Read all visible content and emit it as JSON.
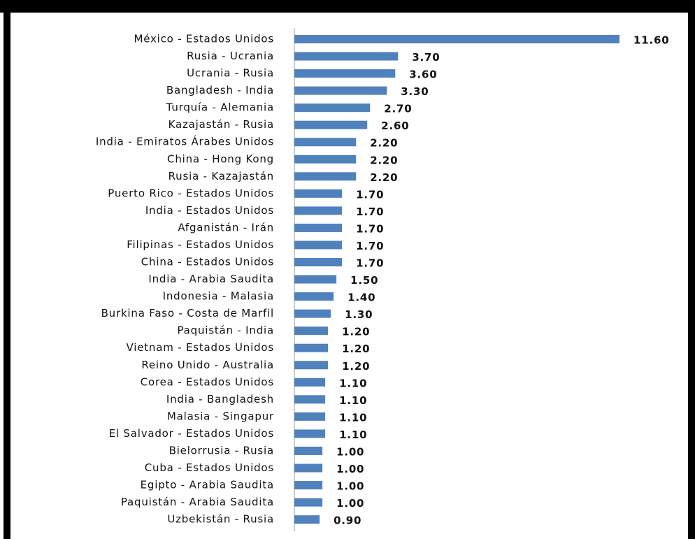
{
  "chart_data": {
    "type": "bar",
    "orientation": "horizontal",
    "color": "#4f81bd",
    "categories": [
      "México - Estados Unidos",
      "Rusia - Ucrania",
      "Ucrania - Rusia",
      "Bangladesh - India",
      "Turquía - Alemania",
      "Kazajastán - Rusia",
      "India - Emiratos Árabes Unidos",
      "China - Hong Kong",
      "Rusia - Kazajastán",
      "Puerto Rico - Estados Unidos",
      "India - Estados Unidos",
      "Afganistán - Irán",
      "Filipinas - Estados Unidos",
      "China - Estados Unidos",
      "India - Arabia Saudita",
      "Indonesia - Malasia",
      "Burkina Faso - Costa de Marfil",
      "Paquistán - India",
      "Vietnam - Estados Unidos",
      "Reino Unido - Australia",
      "Corea - Estados Unidos",
      "India - Bangladesh",
      "Malasia - Singapur",
      "El Salvador - Estados Unidos",
      "Bielorrusia - Rusia",
      "Cuba - Estados Unidos",
      "Egipto - Arabia Saudita",
      "Paquistán - Arabia Saudita",
      "Uzbekistán - Rusia"
    ],
    "values": [
      11.6,
      3.7,
      3.6,
      3.3,
      2.7,
      2.6,
      2.2,
      2.2,
      2.2,
      1.7,
      1.7,
      1.7,
      1.7,
      1.7,
      1.5,
      1.4,
      1.3,
      1.2,
      1.2,
      1.2,
      1.1,
      1.1,
      1.1,
      1.1,
      1.0,
      1.0,
      1.0,
      1.0,
      0.9
    ],
    "value_labels": [
      "11.60",
      "3.70",
      "3.60",
      "3.30",
      "2.70",
      "2.60",
      "2.20",
      "2.20",
      "2.20",
      "1.70",
      "1.70",
      "1.70",
      "1.70",
      "1.70",
      "1.50",
      "1.40",
      "1.30",
      "1.20",
      "1.20",
      "1.20",
      "1.10",
      "1.10",
      "1.10",
      "1.10",
      "1.00",
      "1.00",
      "1.00",
      "1.00",
      "0.90"
    ]
  }
}
